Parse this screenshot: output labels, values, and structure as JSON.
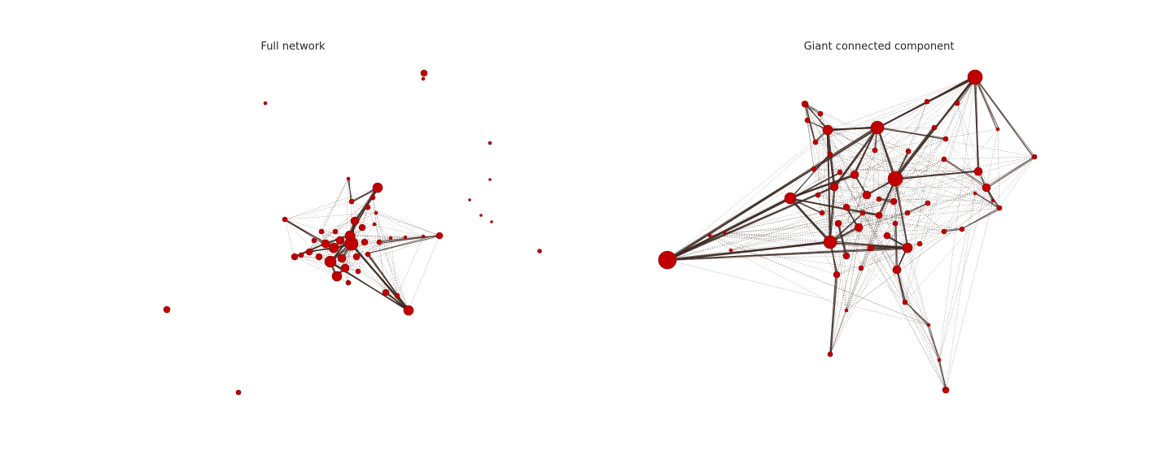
{
  "figure": {
    "panels": [
      {
        "title": "Full network"
      },
      {
        "title": "Giant connected component"
      }
    ]
  },
  "colors": {
    "node": "#c00000",
    "node_edge": "#8b0000",
    "edge": "#3e2a24"
  }
}
